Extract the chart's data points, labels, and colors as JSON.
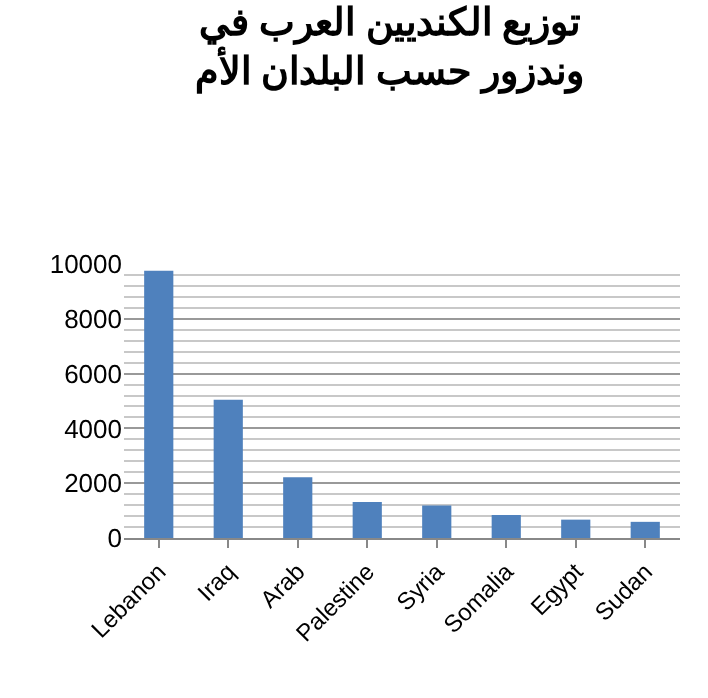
{
  "chart_data": {
    "type": "bar",
    "title": "توزيع الكنديين العرب في\nوندزور حسب البلدان الأم",
    "categories": [
      "Lebanon",
      "Iraq",
      "Arab",
      "Palestine",
      "Syria",
      "Somalia",
      "Egypt",
      "Sudan"
    ],
    "values": [
      9750,
      5050,
      2220,
      1310,
      1190,
      840,
      670,
      590
    ],
    "color": "#4f81bd",
    "ylim": [
      0,
      10000
    ],
    "yticks": [
      0,
      2000,
      4000,
      6000,
      8000,
      10000
    ],
    "grid": "y"
  }
}
